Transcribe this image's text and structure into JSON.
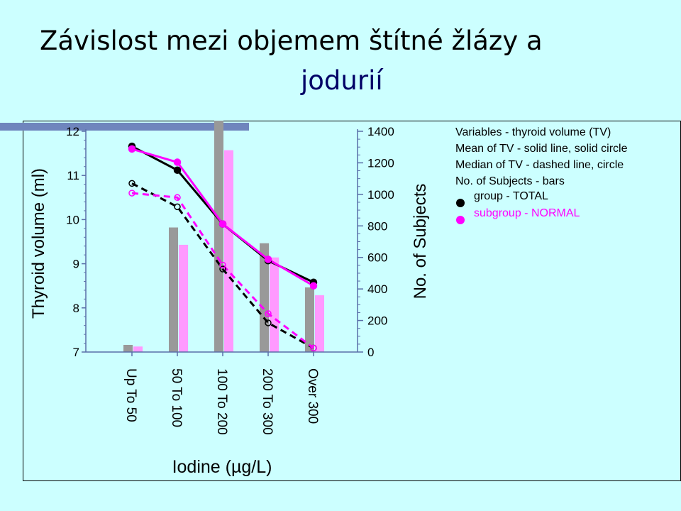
{
  "slide": {
    "title_line1": "Závislost mezi objemem štítné žlázy a",
    "title_line2": "jodurií"
  },
  "colors": {
    "background": "#ccffff",
    "accent_bar": "#6f85bd",
    "total": "#000000",
    "normal": "#ff00ff",
    "bar_total": "#999999",
    "bar_normal": "#ff99ff",
    "title_line2": "#000066"
  },
  "chart_data": {
    "type": "bar",
    "categories": [
      "Up To 50",
      "50 To 100",
      "100 To 200",
      "200 To 300",
      "Over 300"
    ],
    "xlabel": "Iodine (µg/L)",
    "ylabel": "Thyroid volume (ml)",
    "y2label": "No. of Subjects",
    "ylim": [
      7,
      12
    ],
    "yticks": [
      7,
      8,
      9,
      10,
      11,
      12
    ],
    "y2lim": [
      0,
      1400
    ],
    "y2ticks": [
      0,
      200,
      400,
      600,
      800,
      1000,
      1200,
      1400
    ],
    "legend": {
      "placement": "top-right",
      "lines": [
        "Variables - thyroid volume (TV)",
        "Mean of TV - solid line, solid circle",
        "Median of TV - dashed line, circle",
        "No. of Subjects - bars"
      ],
      "entries": [
        {
          "label": "group - TOTAL",
          "color": "#000000"
        },
        {
          "label": "subgroup - NORMAL",
          "color": "#ff00ff"
        }
      ]
    },
    "bars": [
      {
        "name": "group - TOTAL",
        "color": "#999999",
        "values": [
          45,
          790,
          1480,
          690,
          410
        ]
      },
      {
        "name": "subgroup - NORMAL",
        "color": "#ff99ff",
        "values": [
          35,
          680,
          1280,
          600,
          360
        ]
      }
    ],
    "lines": [
      {
        "name": "group - TOTAL",
        "stat": "mean",
        "color": "#000000",
        "dashed": false,
        "filled": true,
        "values": [
          11.66,
          11.12,
          9.9,
          9.07,
          8.58
        ]
      },
      {
        "name": "subgroup - NORMAL",
        "stat": "mean",
        "color": "#ff00ff",
        "dashed": false,
        "filled": true,
        "values": [
          11.6,
          11.3,
          9.9,
          9.1,
          8.5
        ]
      },
      {
        "name": "group - TOTAL",
        "stat": "median",
        "color": "#000000",
        "dashed": true,
        "filled": false,
        "values": [
          10.82,
          10.29,
          8.88,
          7.66,
          7.09
        ]
      },
      {
        "name": "subgroup - NORMAL",
        "stat": "median",
        "color": "#ff00ff",
        "dashed": true,
        "filled": false,
        "values": [
          10.6,
          10.5,
          8.97,
          7.87,
          7.09
        ]
      }
    ]
  }
}
